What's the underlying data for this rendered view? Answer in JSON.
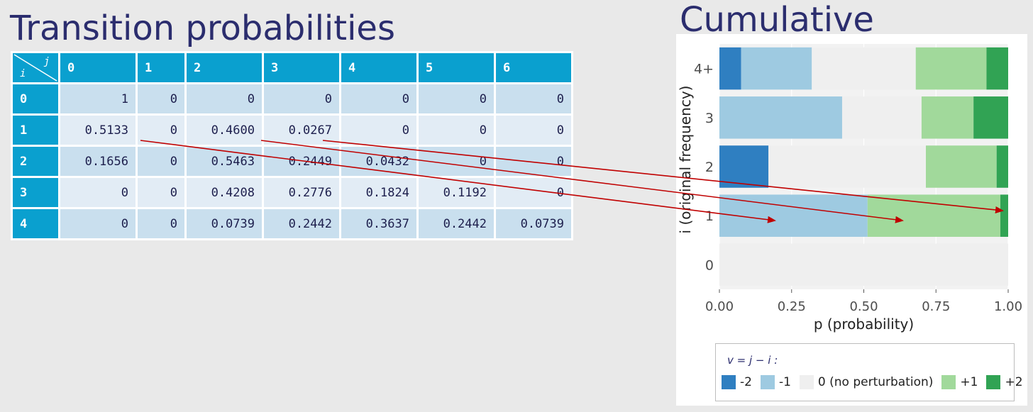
{
  "titles": {
    "left": "Transition probabilities",
    "right": "Cumulative"
  },
  "table": {
    "corner_i": "i",
    "corner_j": "j",
    "columns": [
      "0",
      "1",
      "2",
      "3",
      "4",
      "5",
      "6"
    ],
    "rows": [
      {
        "label": "0",
        "cells": [
          "1",
          "0",
          "0",
          "0",
          "0",
          "0",
          "0"
        ]
      },
      {
        "label": "1",
        "cells": [
          "0.5133",
          "0",
          "0.4600",
          "0.0267",
          "0",
          "0",
          "0"
        ]
      },
      {
        "label": "2",
        "cells": [
          "0.1656",
          "0",
          "0.5463",
          "0.2449",
          "0.0432",
          "0",
          "0"
        ]
      },
      {
        "label": "3",
        "cells": [
          "0",
          "0",
          "0.4208",
          "0.2776",
          "0.1824",
          "0.1192",
          "0"
        ]
      },
      {
        "label": "4",
        "cells": [
          "0",
          "0",
          "0.0739",
          "0.2442",
          "0.3637",
          "0.2442",
          "0.0739"
        ]
      }
    ]
  },
  "chart_data": {
    "type": "bar",
    "orientation": "horizontal",
    "stacked": true,
    "title": "Cumulative",
    "xlabel": "p (probability)",
    "ylabel": "i (original frequency)",
    "xlim": [
      0,
      1
    ],
    "xticks": [
      "0.00",
      "0.25",
      "0.50",
      "0.75",
      "1.00"
    ],
    "categories": [
      "0",
      "1",
      "2",
      "3",
      "4+"
    ],
    "series": [
      {
        "name": "-2",
        "color": "#2f7fc1",
        "values": [
          0,
          0,
          0.17,
          0,
          0.075
        ]
      },
      {
        "name": "-1",
        "color": "#9ecae1",
        "values": [
          0,
          0.513,
          0,
          0.425,
          0.245
        ]
      },
      {
        "name": "0 (no perturbation)",
        "color": "#efefef",
        "values": [
          1,
          0,
          0.545,
          0.275,
          0.36
        ]
      },
      {
        "name": "+1",
        "color": "#a1d99b",
        "values": [
          0,
          0.46,
          0.245,
          0.18,
          0.245
        ]
      },
      {
        "name": "+2",
        "color": "#31a354",
        "values": [
          0,
          0.027,
          0.04,
          0.12,
          0.075
        ]
      }
    ],
    "legend": {
      "title": "v = j − i :",
      "position": "bottom"
    },
    "grid": true
  }
}
